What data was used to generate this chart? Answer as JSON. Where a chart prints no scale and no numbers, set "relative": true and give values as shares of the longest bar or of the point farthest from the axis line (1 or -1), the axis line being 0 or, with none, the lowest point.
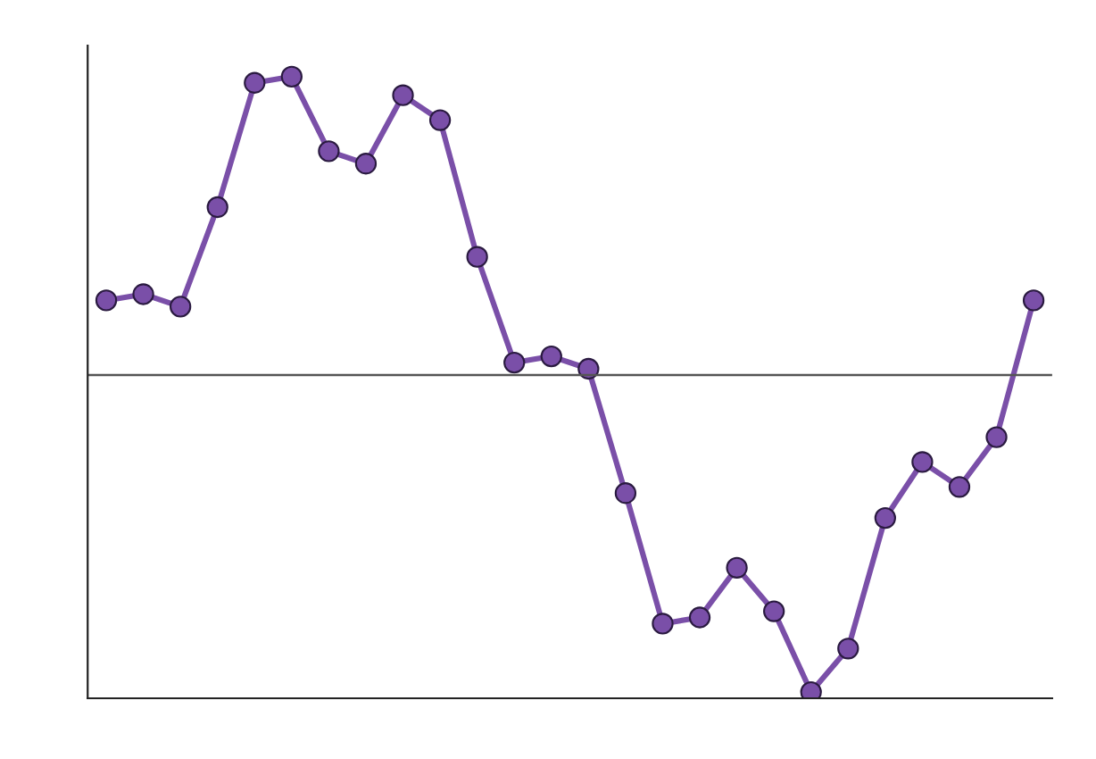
{
  "chart_data": {
    "type": "line",
    "relative": true,
    "categories": [
      null,
      null,
      null,
      null,
      null,
      null,
      null,
      null,
      null,
      null,
      null,
      null,
      null,
      null,
      null,
      null,
      null,
      null,
      null,
      null,
      null,
      null,
      null,
      null,
      null,
      null
    ],
    "series": [
      {
        "color": "#7a4fa8",
        "values": [
          0.64,
          0.65,
          0.63,
          0.79,
          0.99,
          1,
          0.88,
          0.86,
          0.97,
          0.93,
          0.71,
          0.54,
          0.55,
          0.53,
          0.33,
          0.12,
          0.13,
          0.21,
          0.14,
          0.01,
          0.08,
          0.29,
          0.38,
          0.34,
          0.42,
          0.64
        ]
      }
    ],
    "marker": "circle",
    "line_style": "solid",
    "ref_lines": [
      {
        "axis": "y",
        "value": 0.52,
        "color": "#555555",
        "line_style": "solid"
      }
    ]
  }
}
